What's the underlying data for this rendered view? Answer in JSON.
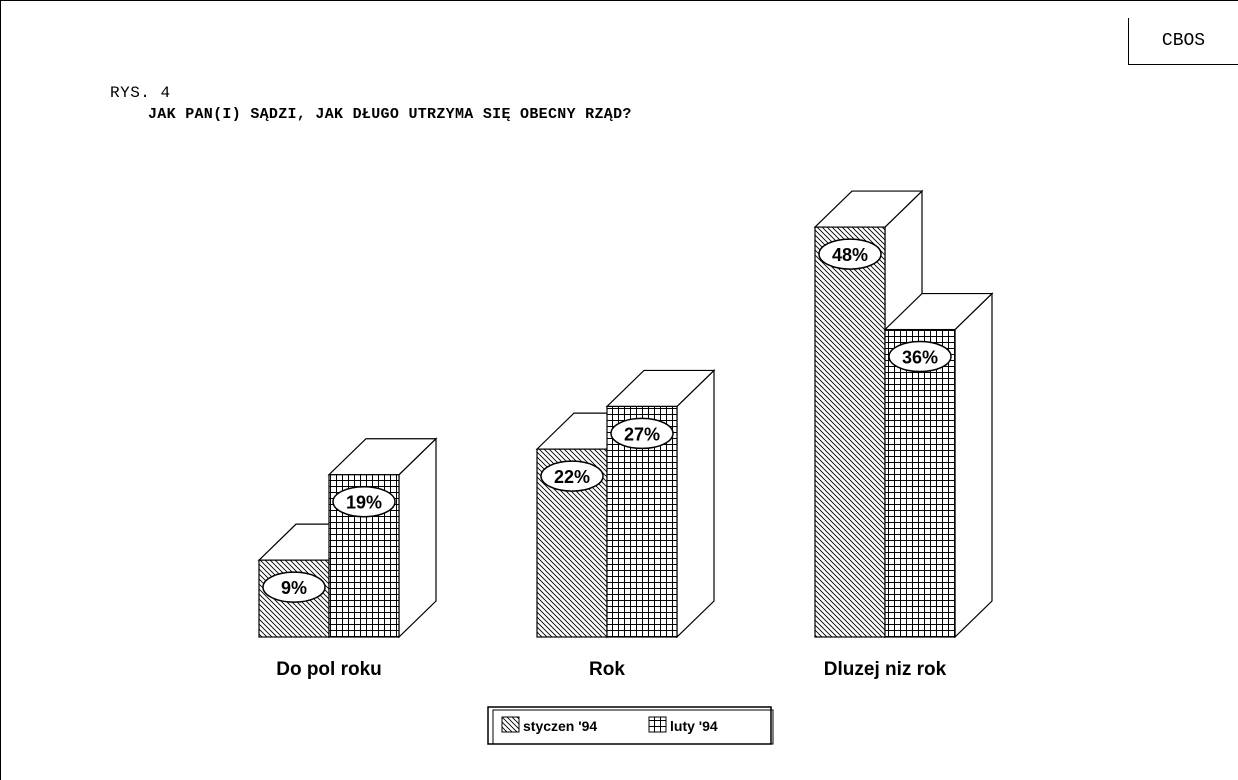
{
  "header": {
    "badge": "CBOS",
    "figure_label": "RYS. 4",
    "title": "JAK PAN(I) SĄDZI, JAK DŁUGO UTRZYMA SIĘ OBECNY RZĄD?"
  },
  "chart_data": {
    "type": "bar",
    "title": "JAK PAN(I) SĄDZI, JAK DŁUGO UTRZYMA SIĘ OBECNY RZĄD?",
    "categories": [
      "Do pol roku",
      "Rok",
      "Dluzej niz rok"
    ],
    "series": [
      {
        "name": "styczen '94",
        "values": [
          9,
          22,
          48
        ],
        "labels": [
          "9%",
          "22%",
          "48%"
        ],
        "pattern": "diagonal-hatch"
      },
      {
        "name": "luty '94",
        "values": [
          19,
          27,
          36
        ],
        "labels": [
          "19%",
          "27%",
          "36%"
        ],
        "pattern": "grid"
      }
    ],
    "xlabel": "",
    "ylabel": "",
    "unit": "%",
    "style": "3d-bar",
    "grid": false,
    "legend_position": "bottom-center"
  }
}
